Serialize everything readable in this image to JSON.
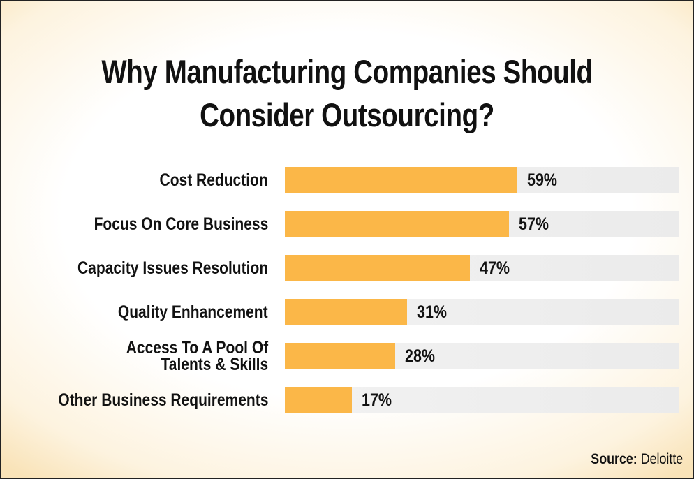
{
  "chart_data": {
    "type": "bar",
    "orientation": "horizontal",
    "title_lines": [
      "Why Manufacturing Companies Should",
      "Consider Outsourcing?"
    ],
    "categories": [
      [
        "Cost Reduction"
      ],
      [
        "Focus On Core Business"
      ],
      [
        "Capacity Issues Resolution"
      ],
      [
        "Quality Enhancement"
      ],
      [
        "Access To A Pool Of",
        "Talents & Skills"
      ],
      [
        "Other Business Requirements"
      ]
    ],
    "values": [
      59,
      57,
      47,
      31,
      28,
      17
    ],
    "value_labels": [
      "59%",
      "57%",
      "47%",
      "31%",
      "28%",
      "17%"
    ],
    "xlim": [
      0,
      100
    ],
    "unit": "%",
    "bar_color": "#fbb748",
    "track_color": "#eeeeee",
    "grid": false,
    "legend": "none"
  },
  "source": {
    "label": "Source:",
    "name": "Deloitte"
  }
}
